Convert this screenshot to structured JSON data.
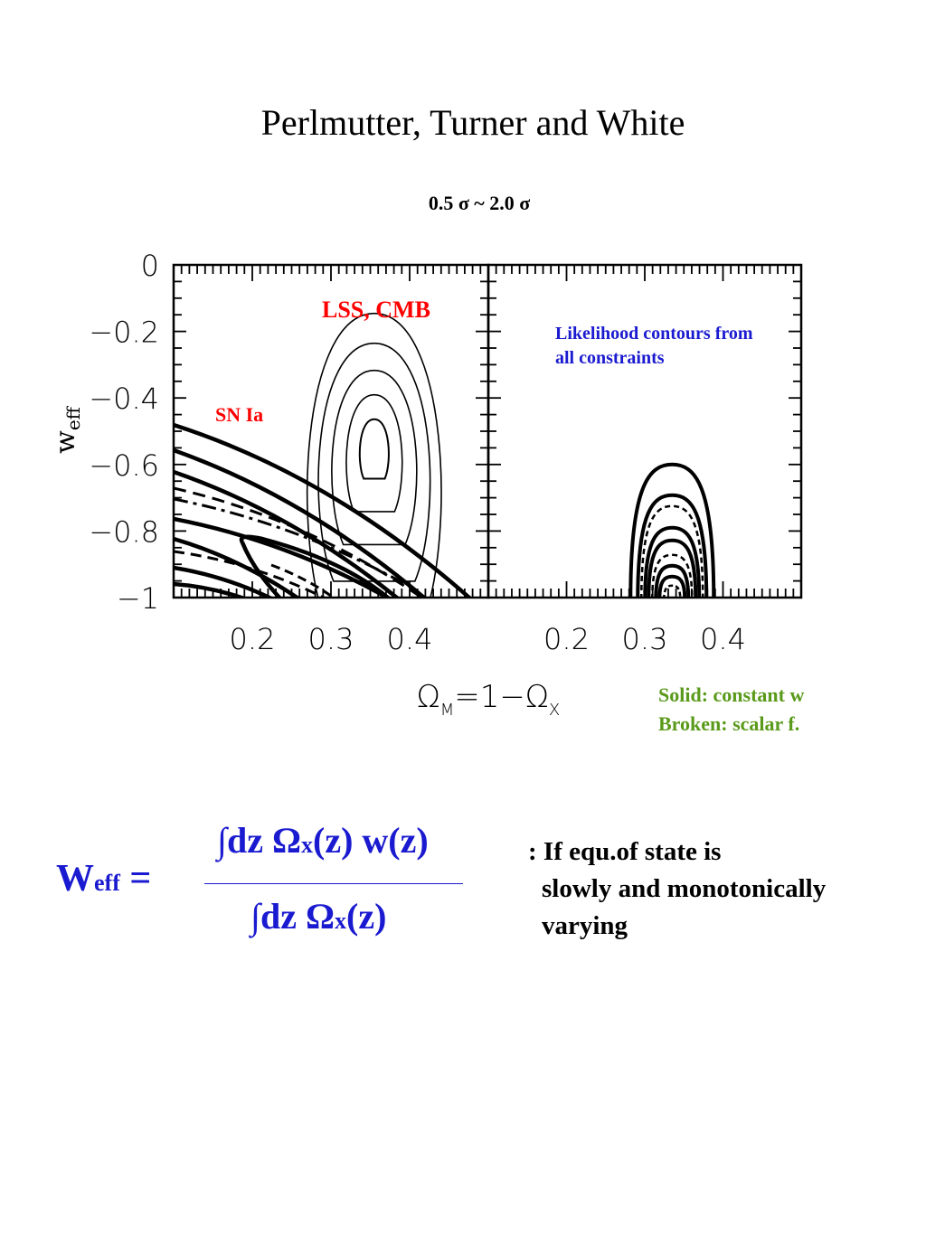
{
  "page_title": "Perlmutter, Turner and White",
  "sigma_range": "0.5  σ  ~   2.0  σ",
  "chart_data": [
    {
      "type": "contour",
      "panel": "left",
      "xlabel": "Ω_M=1−Ω_X",
      "ylabel": "w_eff",
      "xlim": [
        0.1,
        0.5
      ],
      "ylim": [
        -1,
        0
      ],
      "x_ticks": [
        "0.2",
        "0.3",
        "0.4"
      ],
      "y_ticks": [
        "0",
        "−0.2",
        "−0.4",
        "−0.6",
        "−0.8",
        "−1"
      ],
      "annotations": [
        "LSS, CMB",
        "SN Ia"
      ],
      "lss_cmb_contours": {
        "center_x": 0.355,
        "center_y": -0.54
      }
    },
    {
      "type": "contour",
      "panel": "right",
      "xlabel": "Ω_M=1−Ω_X",
      "xlim": [
        0.1,
        0.5
      ],
      "ylim": [
        -1,
        0
      ],
      "x_ticks": [
        "0.2",
        "0.3",
        "0.4"
      ],
      "annotations": [
        "Likelihood contours from all constraints"
      ],
      "combined_contours": {
        "center_x": 0.335,
        "peak_w": -0.6
      }
    }
  ],
  "annotations": {
    "lss_cmb": "LSS, CMB",
    "sn_ia": "SN Ia",
    "likelihood_line1": "Likelihood contours from",
    "likelihood_line2": "all constraints",
    "legend_line1": "Solid: constant w",
    "legend_line2": "Broken: scalar f."
  },
  "formula": {
    "lhs_main": "W",
    "lhs_sub": "eff",
    "lhs_eq": " =",
    "num_a": "∫dz Ω",
    "num_sub": "x",
    "num_b": "(z) w(z)",
    "den_a": "∫dz Ω",
    "den_sub": "x",
    "den_b": "(z)"
  },
  "condition": {
    "line1": ": If equ.of state is",
    "line2": "slowly and monotonically",
    "line3": "varying"
  },
  "colors": {
    "annotation_red": "#ff0000",
    "formula_blue": "#1a1ad0",
    "legend_green": "#5a9a1a"
  }
}
